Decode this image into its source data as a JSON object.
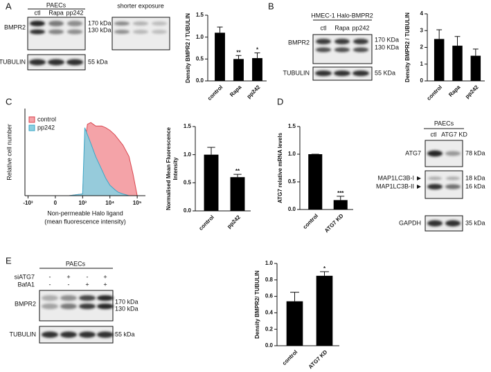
{
  "panel_labels": [
    "A",
    "B",
    "C",
    "D",
    "E"
  ],
  "blots": {
    "A": {
      "header": "PAECs",
      "lanes": [
        "ctl",
        "Rapa",
        "pp242"
      ],
      "exposure": "shorter exposure",
      "rows": [
        "BMPR2",
        "TUBULIN"
      ],
      "sizes": [
        "170 kDa",
        "130 kDa",
        "55 kDa"
      ]
    },
    "B": {
      "header": "HMEC-1 Halo-BMPR2",
      "lanes": [
        "ctl",
        "Rapa",
        "pp242"
      ],
      "rows": [
        "BMPR2",
        "TUBULIN"
      ],
      "sizes": [
        "170 KDa",
        "130 KDa",
        "55 KDa"
      ]
    },
    "D": {
      "header": "PAECs",
      "lanes": [
        "ctl",
        "ATG7 KD"
      ],
      "rows": [
        "ATG7",
        "MAP1LC3B-I",
        "MAP1LC3B-II",
        "GAPDH"
      ],
      "sizes": [
        "78 kDa",
        "18 kDa",
        "16 kDa",
        "35 kDa"
      ]
    },
    "E": {
      "header": "PAECs",
      "treatments": [
        "siATG7",
        "BafA1"
      ],
      "signs": [
        [
          "-",
          "+",
          "-",
          "+"
        ],
        [
          "-",
          "-",
          "+",
          "+"
        ]
      ],
      "rows": [
        "BMPR2",
        "TUBULIN"
      ],
      "sizes": [
        "170 kDa",
        "130 kDa",
        "55 kDa"
      ]
    }
  },
  "chart_data": [
    {
      "type": "bar",
      "ylabel": [
        "Density BMPR2 / TUBULIN"
      ],
      "categories": [
        "control",
        "Rapa",
        "pp242"
      ],
      "values": [
        1.1,
        0.5,
        0.52
      ],
      "errors": [
        0.13,
        0.08,
        0.12
      ],
      "significance": [
        null,
        "**",
        "*"
      ],
      "color": "#000000",
      "ylim": [
        0,
        1.5
      ],
      "yticks": [
        {
          "value": 0,
          "label": "0.0"
        },
        0.5,
        {
          "value": 1,
          "label": "1.0"
        },
        1.5
      ]
    },
    {
      "type": "bar",
      "ylabel": [
        "Density BMPR2 / TUBULIN"
      ],
      "categories": [
        "control",
        "Rapa",
        "pp242"
      ],
      "values": [
        2.5,
        2.1,
        1.5
      ],
      "errors": [
        0.55,
        0.55,
        0.4
      ],
      "significance": [
        null,
        null,
        null
      ],
      "color": "#000000",
      "ylim": [
        0,
        4
      ],
      "yticks": [
        0,
        1,
        2,
        3,
        4
      ]
    },
    {
      "type": "area",
      "ylabel": [
        "Relative cell number"
      ],
      "xlabel": [
        "Non-permeable Halo ligand",
        "(mean fluorescence intensity)"
      ],
      "xscale": "biexponential",
      "legend": "top-left",
      "x": [
        -1000,
        0,
        500,
        1000,
        1200,
        1500,
        2000,
        3000,
        5000,
        7000,
        10000,
        15000,
        20000,
        30000,
        50000,
        70000,
        100000
      ],
      "series": [
        {
          "name": "control",
          "color": "#d9464f",
          "fill": "#f4a3a8",
          "values": [
            0,
            0,
            0,
            2,
            60,
            82,
            84,
            80,
            80,
            78,
            75,
            70,
            65,
            58,
            45,
            25,
            0
          ]
        },
        {
          "name": "pp242",
          "color": "#3aa7c8",
          "fill": "#8ccfe0",
          "values": [
            0,
            0,
            0,
            2,
            78,
            70,
            60,
            45,
            30,
            20,
            12,
            7,
            4,
            2,
            0,
            0,
            0
          ]
        }
      ],
      "xlim": [
        -1300,
        200000
      ],
      "ylim": [
        0,
        100
      ],
      "xticks": [
        {
          "value": -1000,
          "label": "-10³"
        },
        0,
        {
          "value": 1000,
          "label": "10³"
        },
        {
          "value": 10000,
          "label": "10⁴"
        },
        {
          "value": 100000,
          "label": "10⁵"
        }
      ]
    },
    {
      "type": "bar",
      "ylabel": [
        "Normalised Mean Fluorescence",
        "Intensity"
      ],
      "categories": [
        "control",
        "pp242"
      ],
      "values": [
        1.0,
        0.6
      ],
      "errors": [
        0.13,
        0.05
      ],
      "significance": [
        null,
        "**"
      ],
      "color": "#000000",
      "ylim": [
        0,
        1.5
      ],
      "yticks": [
        {
          "value": 0,
          "label": "0.0"
        },
        0.5,
        {
          "value": 1,
          "label": "1.0"
        },
        1.5
      ]
    },
    {
      "type": "bar",
      "ylabel": [
        "ATG7 relative mRNA levels"
      ],
      "categories": [
        "control",
        "ATG7 KD"
      ],
      "values": [
        1.0,
        0.17
      ],
      "errors": [
        0,
        0.07
      ],
      "significance": [
        null,
        "***"
      ],
      "color": "#000000",
      "ylim": [
        0,
        1.5
      ],
      "yticks": [
        {
          "value": 0,
          "label": "0.0"
        },
        0.5,
        {
          "value": 1,
          "label": "1.0"
        },
        1.5
      ]
    },
    {
      "type": "bar",
      "ylabel": [
        "Density BMPR2/ TUBULIN"
      ],
      "categories": [
        "control",
        "ATG7 KD"
      ],
      "values": [
        0.54,
        0.85
      ],
      "errors": [
        0.11,
        0.05
      ],
      "significance": [
        null,
        "*"
      ],
      "color": "#000000",
      "ylim": [
        0,
        1
      ],
      "yticks": [
        {
          "value": 0,
          "label": "0.0"
        },
        0.2,
        0.4,
        0.6,
        0.8,
        {
          "value": 1,
          "label": "1.0"
        }
      ]
    }
  ]
}
